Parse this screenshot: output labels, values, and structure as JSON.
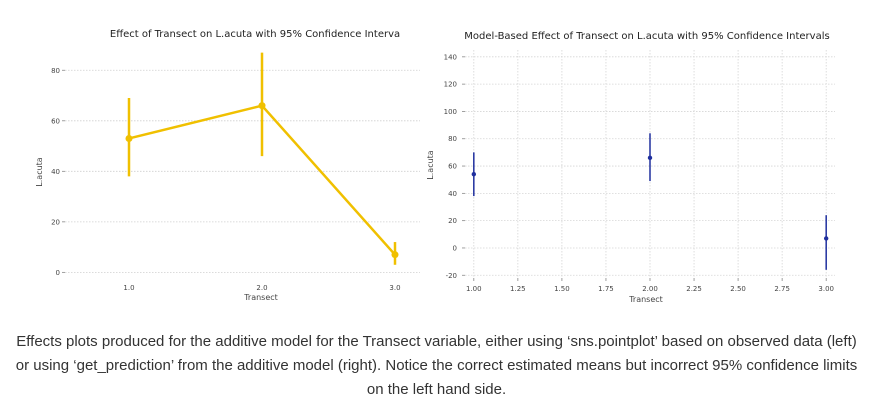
{
  "chart_data": [
    {
      "type": "line",
      "title": "Effect of Transect on L.acuta with 95% Confidence Interva",
      "xlabel": "Transect",
      "ylabel": "L.acuta",
      "categories": [
        "1.0",
        "2.0",
        "3.0"
      ],
      "yticks": [
        "0",
        "20",
        "40",
        "60",
        "80"
      ],
      "ylim": [
        -5,
        90
      ],
      "grid": true,
      "color": "#f0c000",
      "series": [
        {
          "values": [
            53,
            66,
            7
          ],
          "ci_low": [
            38,
            46,
            3
          ],
          "ci_high": [
            69,
            87,
            12
          ]
        }
      ]
    },
    {
      "type": "scatter",
      "title": "Model-Based Effect of Transect on L.acuta with 95% Confidence Intervals",
      "xlabel": "Transect",
      "ylabel": "L.acuta",
      "xticks": [
        "1.00",
        "1.25",
        "1.50",
        "1.75",
        "2.00",
        "2.25",
        "2.50",
        "2.75",
        "3.00"
      ],
      "yticks": [
        "-20",
        "0",
        "20",
        "40",
        "60",
        "80",
        "100",
        "120",
        "140"
      ],
      "xlim": [
        0.95,
        3.05
      ],
      "ylim": [
        -22,
        145
      ],
      "grid": true,
      "color": "#1f2f9e",
      "points": [
        {
          "x": 1.0,
          "y": 54,
          "ci_low": 38,
          "ci_high": 70
        },
        {
          "x": 2.0,
          "y": 66,
          "ci_low": 49,
          "ci_high": 84
        },
        {
          "x": 3.0,
          "y": 7,
          "ci_low": -16,
          "ci_high": 24
        }
      ]
    }
  ],
  "caption": "Effects plots produced for the additive model for the Transect variable, either using ‘sns.pointplot’ based on observed data (left) or using ‘get_prediction’ from the additive model (right). Notice the correct estimated means but incorrect 95% confidence limits on the left hand side."
}
